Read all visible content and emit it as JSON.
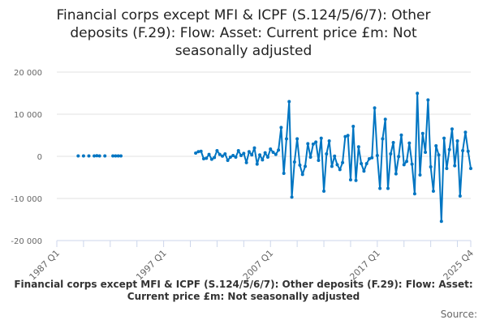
{
  "chart_data": {
    "type": "line",
    "title": "Financial corps except MFI & ICPF (S.124/5/6/7): Other deposits (F.29): Flow: Asset: Current price £m: Not seasonally adjusted",
    "x_start": "1987 Q1",
    "x_end": "2025 Q4",
    "x_tick_labels": [
      "1987 Q1",
      "1997 Q1",
      "2007 Q1",
      "2017 Q1",
      "2025 Q4"
    ],
    "ylim": [
      -20000,
      20000
    ],
    "y_ticks": [
      20000,
      10000,
      0,
      -10000,
      -20000
    ],
    "y_tick_labels": [
      "20 000",
      "10 000",
      "0",
      "-10 000",
      "-20 000"
    ],
    "grid": true,
    "series": [
      {
        "name": "Financial corps except MFI & ICPF (S.124/5/6/7): Other deposits (F.29): Flow: Asset: Current price £m: Not seasonally adjusted",
        "color": "#0075c2",
        "early_points": [
          [
            8,
            100
          ],
          [
            10,
            100
          ],
          [
            12,
            100
          ],
          [
            14,
            100
          ],
          [
            15,
            150
          ],
          [
            16,
            100
          ],
          [
            18,
            100
          ],
          [
            21,
            100
          ],
          [
            22,
            100
          ],
          [
            23,
            100
          ],
          [
            24,
            100
          ]
        ],
        "continuous_start_index": 52,
        "values": [
          770,
          1100,
          1200,
          -580,
          -450,
          450,
          -700,
          -300,
          1350,
          450,
          60,
          580,
          -960,
          -200,
          200,
          -200,
          1350,
          200,
          700,
          -1480,
          1100,
          330,
          2000,
          -1860,
          330,
          -830,
          830,
          -200,
          1730,
          960,
          450,
          1480,
          6860,
          -4040,
          4170,
          13000,
          -9680,
          -1350,
          4170,
          -2100,
          -4300,
          -2370,
          3000,
          -200,
          2900,
          3400,
          -960,
          4300,
          -8270,
          580,
          3650,
          -2370,
          60,
          -2000,
          -3140,
          -1480,
          4680,
          4940,
          -5580,
          7120,
          -5710,
          2250,
          -1730,
          -3520,
          -1730,
          -580,
          -330,
          11480,
          200,
          -7630,
          4170,
          8790,
          -7630,
          580,
          3270,
          -4170,
          -60,
          5060,
          -1990,
          -1210,
          3140,
          -1860,
          -8900,
          14940,
          -4420,
          5440,
          960,
          13400,
          -2500,
          -8270,
          2500,
          330,
          -15440,
          4300,
          -2880,
          1600,
          6480,
          -2240,
          3650,
          -9420,
          1350,
          5710,
          1210,
          -2880
        ]
      }
    ],
    "legend": "Financial corps except MFI & ICPF (S.124/5/6/7): Other deposits (F.29): Flow: Asset: Current price £m: Not seasonally adjusted",
    "legend_position": "bottom",
    "source_label": "Source:"
  }
}
